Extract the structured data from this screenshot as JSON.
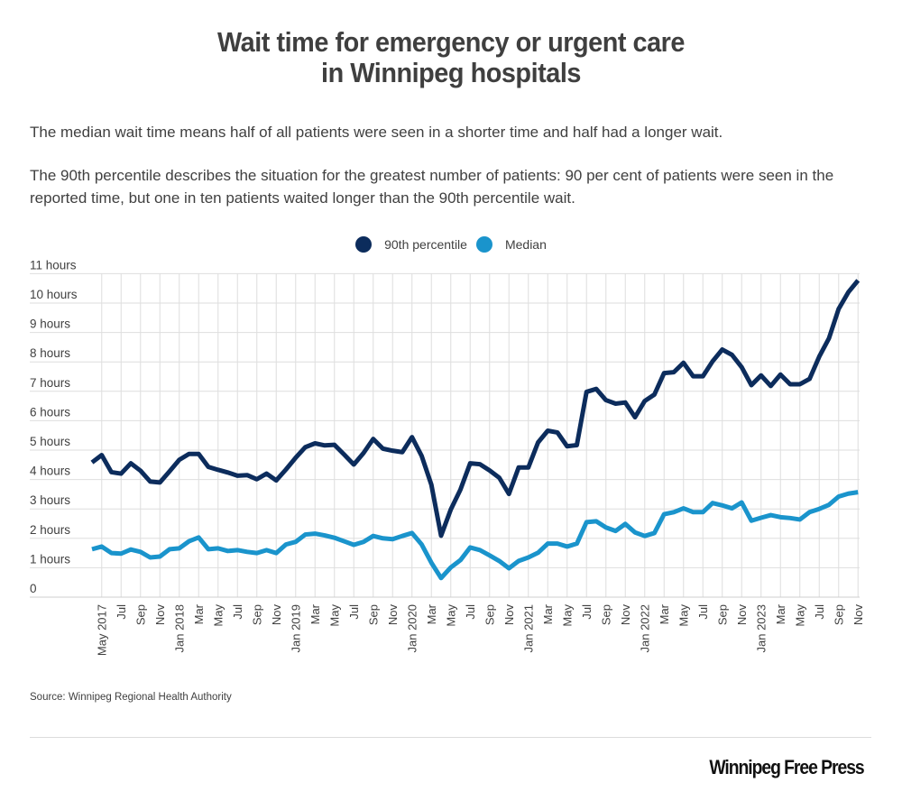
{
  "title": {
    "line1": "Wait time for emergency or urgent care",
    "line2": "in Winnipeg hospitals"
  },
  "description": {
    "p1": "The median wait time means half of all patients were seen in a shorter time and half had a longer wait.",
    "p2": "The 90th percentile describes the situation for the greatest number of patients: 90 per cent of patients were seen in the reported time, but one in ten patients waited longer than the 90th percentile wait."
  },
  "legend": [
    {
      "label": "90th percentile",
      "color": "#0c2c5c"
    },
    {
      "label": "Median",
      "color": "#1a94cc"
    }
  ],
  "source": "Source: Winnipeg Regional Health Authority",
  "publisher": "Winnipeg Free Press",
  "chart_data": {
    "type": "line",
    "title": "Wait time for emergency or urgent care in Winnipeg hospitals",
    "xlabel": "",
    "ylabel": "",
    "ylim": [
      0,
      11
    ],
    "grid": true,
    "legend_position": "top-center",
    "y_ticks": [
      "0",
      "1 hours",
      "2 hours",
      "3 hours",
      "4 hours",
      "5 hours",
      "6 hours",
      "7 hours",
      "8 hours",
      "9 hours",
      "10 hours",
      "11 hours"
    ],
    "x_start": "Apr 2017",
    "x_end": "Nov 2023",
    "x_tick_labels": [
      "May 2017",
      "Jul",
      "Sep",
      "Nov",
      "Jan 2018",
      "Mar",
      "May",
      "Jul",
      "Sep",
      "Nov",
      "Jan 2019",
      "Mar",
      "May",
      "Jul",
      "Sep",
      "Nov",
      "Jan 2020",
      "Mar",
      "May",
      "Jul",
      "Sep",
      "Nov",
      "Jan 2021",
      "Mar",
      "May",
      "Jul",
      "Sep",
      "Nov",
      "Jan 2022",
      "Mar",
      "May",
      "Jul",
      "Sep",
      "Nov",
      "Jan 2023",
      "Mar",
      "May",
      "Jul",
      "Sep",
      "Nov"
    ],
    "x": [
      "Apr 2017",
      "May 2017",
      "Jun 2017",
      "Jul 2017",
      "Aug 2017",
      "Sep 2017",
      "Oct 2017",
      "Nov 2017",
      "Dec 2017",
      "Jan 2018",
      "Feb 2018",
      "Mar 2018",
      "Apr 2018",
      "May 2018",
      "Jun 2018",
      "Jul 2018",
      "Aug 2018",
      "Sep 2018",
      "Oct 2018",
      "Nov 2018",
      "Dec 2018",
      "Jan 2019",
      "Feb 2019",
      "Mar 2019",
      "Apr 2019",
      "May 2019",
      "Jun 2019",
      "Jul 2019",
      "Aug 2019",
      "Sep 2019",
      "Oct 2019",
      "Nov 2019",
      "Dec 2019",
      "Jan 2020",
      "Feb 2020",
      "Mar 2020",
      "Apr 2020",
      "May 2020",
      "Jun 2020",
      "Jul 2020",
      "Aug 2020",
      "Sep 2020",
      "Oct 2020",
      "Nov 2020",
      "Dec 2020",
      "Jan 2021",
      "Feb 2021",
      "Mar 2021",
      "Apr 2021",
      "May 2021",
      "Jun 2021",
      "Jul 2021",
      "Aug 2021",
      "Sep 2021",
      "Oct 2021",
      "Nov 2021",
      "Dec 2021",
      "Jan 2022",
      "Feb 2022",
      "Mar 2022",
      "Apr 2022",
      "May 2022",
      "Jun 2022",
      "Jul 2022",
      "Aug 2022",
      "Sep 2022",
      "Oct 2022",
      "Nov 2022",
      "Dec 2022",
      "Jan 2023",
      "Feb 2023",
      "Mar 2023",
      "Apr 2023",
      "May 2023",
      "Jun 2023",
      "Jul 2023",
      "Aug 2023",
      "Sep 2023",
      "Oct 2023",
      "Nov 2023"
    ],
    "series": [
      {
        "name": "90th percentile",
        "color": "#0c2c5c",
        "values": [
          4.58,
          4.83,
          4.25,
          4.2,
          4.55,
          4.3,
          3.93,
          3.9,
          4.28,
          4.67,
          4.87,
          4.87,
          4.43,
          4.33,
          4.24,
          4.13,
          4.15,
          4.01,
          4.2,
          3.97,
          4.34,
          4.74,
          5.1,
          5.23,
          5.16,
          5.18,
          4.85,
          4.51,
          4.9,
          5.38,
          5.05,
          4.98,
          4.93,
          5.44,
          4.8,
          3.82,
          2.09,
          2.98,
          3.66,
          4.55,
          4.52,
          4.31,
          4.06,
          3.51,
          4.41,
          4.41,
          5.26,
          5.66,
          5.6,
          5.13,
          5.17,
          6.98,
          7.08,
          6.7,
          6.58,
          6.62,
          6.12,
          6.67,
          6.89,
          7.62,
          7.65,
          7.97,
          7.51,
          7.51,
          8.02,
          8.42,
          8.24,
          7.82,
          7.21,
          7.54,
          7.18,
          7.57,
          7.24,
          7.24,
          7.42,
          8.18,
          8.8,
          9.8,
          10.37,
          10.77
        ]
      },
      {
        "name": "Median",
        "color": "#1a94cc",
        "values": [
          1.63,
          1.72,
          1.5,
          1.48,
          1.62,
          1.54,
          1.35,
          1.38,
          1.63,
          1.66,
          1.9,
          2.03,
          1.63,
          1.66,
          1.57,
          1.6,
          1.54,
          1.5,
          1.6,
          1.5,
          1.79,
          1.88,
          2.13,
          2.16,
          2.1,
          2.02,
          1.9,
          1.78,
          1.88,
          2.08,
          2.0,
          1.97,
          2.08,
          2.18,
          1.79,
          1.17,
          0.65,
          1.01,
          1.26,
          1.69,
          1.6,
          1.42,
          1.23,
          0.98,
          1.23,
          1.35,
          1.51,
          1.82,
          1.82,
          1.72,
          1.82,
          2.55,
          2.58,
          2.37,
          2.25,
          2.49,
          2.2,
          2.08,
          2.18,
          2.82,
          2.89,
          3.02,
          2.89,
          2.89,
          3.2,
          3.12,
          3.02,
          3.22,
          2.6,
          2.7,
          2.79,
          2.72,
          2.69,
          2.64,
          2.89,
          3.0,
          3.14,
          3.42,
          3.52,
          3.57
        ]
      }
    ]
  }
}
